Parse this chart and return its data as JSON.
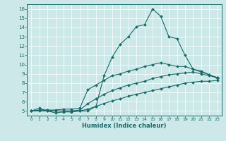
{
  "title": "",
  "xlabel": "Humidex (Indice chaleur)",
  "xlim": [
    -0.5,
    23.5
  ],
  "ylim": [
    4.5,
    16.5
  ],
  "xticks": [
    0,
    1,
    2,
    3,
    4,
    5,
    6,
    7,
    8,
    9,
    10,
    11,
    12,
    13,
    14,
    15,
    16,
    17,
    18,
    19,
    20,
    21,
    22,
    23
  ],
  "yticks": [
    5,
    6,
    7,
    8,
    9,
    10,
    11,
    12,
    13,
    14,
    15,
    16
  ],
  "bg_color": "#cce8e8",
  "line_color": "#1a6b6b",
  "grid_color": "#b0d0d0",
  "curve1_x": [
    0,
    1,
    2,
    3,
    4,
    5,
    6,
    7,
    8,
    9,
    10,
    11,
    12,
    13,
    14,
    15,
    16,
    17,
    18,
    19,
    20,
    21,
    22,
    23
  ],
  "curve1_y": [
    5.0,
    5.3,
    5.0,
    4.8,
    4.9,
    4.9,
    5.0,
    5.2,
    5.5,
    8.8,
    10.8,
    12.2,
    13.0,
    14.1,
    14.3,
    16.0,
    15.2,
    13.0,
    12.8,
    11.0,
    9.5,
    9.3,
    8.9,
    8.5
  ],
  "curve2_x": [
    0,
    1,
    2,
    3,
    4,
    5,
    6,
    7,
    8,
    9,
    10,
    11,
    12,
    13,
    14,
    15,
    16,
    17,
    18,
    19,
    20,
    21,
    22,
    23
  ],
  "curve2_y": [
    5.0,
    5.1,
    5.1,
    5.1,
    5.2,
    5.2,
    5.3,
    7.3,
    7.8,
    8.3,
    8.8,
    9.0,
    9.3,
    9.5,
    9.8,
    10.0,
    10.2,
    10.0,
    9.8,
    9.8,
    9.5,
    9.2,
    8.9,
    8.6
  ],
  "curve3_x": [
    0,
    1,
    2,
    3,
    4,
    5,
    6,
    7,
    8,
    9,
    10,
    11,
    12,
    13,
    14,
    15,
    16,
    17,
    18,
    19,
    20,
    21,
    22,
    23
  ],
  "curve4_x": [
    0,
    1,
    2,
    3,
    4,
    5,
    6,
    7,
    8,
    9,
    10,
    11,
    12,
    13,
    14,
    15,
    16,
    17,
    18,
    19,
    20,
    21,
    22,
    23
  ],
  "curve3_y": [
    5.0,
    5.1,
    5.1,
    5.0,
    5.0,
    5.0,
    5.1,
    5.8,
    6.3,
    6.8,
    7.2,
    7.5,
    7.8,
    8.0,
    8.2,
    8.5,
    8.7,
    8.9,
    9.0,
    9.1,
    9.2,
    9.0,
    8.8,
    8.6
  ],
  "curve4_y": [
    5.0,
    5.0,
    5.0,
    5.0,
    5.0,
    5.0,
    5.0,
    5.0,
    5.5,
    5.8,
    6.1,
    6.3,
    6.6,
    6.8,
    7.0,
    7.2,
    7.4,
    7.6,
    7.8,
    8.0,
    8.1,
    8.2,
    8.2,
    8.3
  ]
}
